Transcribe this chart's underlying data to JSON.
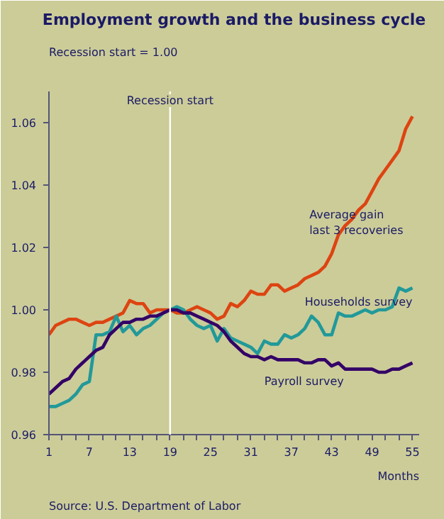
{
  "chart_data": {
    "type": "line",
    "title": "Employment growth and the business cycle",
    "subtitle": "Recession start = 1.00",
    "xlabel": "Months",
    "annotations": [
      "Source: U.S. Department of Labor"
    ],
    "x": [
      1,
      2,
      3,
      4,
      5,
      6,
      7,
      8,
      9,
      10,
      11,
      12,
      13,
      14,
      15,
      16,
      17,
      18,
      19,
      20,
      21,
      22,
      23,
      24,
      25,
      26,
      27,
      28,
      29,
      30,
      31,
      32,
      33,
      34,
      35,
      36,
      37,
      38,
      39,
      40,
      41,
      42,
      43,
      44,
      45,
      46,
      47,
      48,
      49,
      50,
      51,
      52,
      53,
      54,
      55
    ],
    "series": [
      {
        "name": "Average gain\nlast 3 recoveries",
        "color": "#dd4411",
        "values": [
          0.992,
          0.995,
          0.996,
          0.997,
          0.997,
          0.996,
          0.995,
          0.996,
          0.996,
          0.997,
          0.998,
          0.999,
          1.003,
          1.002,
          1.002,
          0.999,
          1.0,
          1.0,
          1.0,
          0.999,
          0.999,
          1.0,
          1.001,
          1.0,
          0.999,
          0.997,
          0.998,
          1.002,
          1.001,
          1.003,
          1.006,
          1.005,
          1.005,
          1.008,
          1.008,
          1.006,
          1.007,
          1.008,
          1.01,
          1.011,
          1.012,
          1.014,
          1.018,
          1.024,
          1.027,
          1.029,
          1.032,
          1.034,
          1.038,
          1.042,
          1.045,
          1.048,
          1.051,
          1.058,
          1.062
        ]
      },
      {
        "name": "Households survey",
        "color": "#229999",
        "values": [
          0.969,
          0.969,
          0.97,
          0.971,
          0.973,
          0.976,
          0.977,
          0.992,
          0.992,
          0.993,
          0.998,
          0.993,
          0.995,
          0.992,
          0.994,
          0.995,
          0.997,
          0.999,
          1.0,
          1.001,
          1.0,
          0.997,
          0.995,
          0.994,
          0.995,
          0.99,
          0.994,
          0.991,
          0.99,
          0.989,
          0.988,
          0.986,
          0.99,
          0.989,
          0.989,
          0.992,
          0.991,
          0.992,
          0.994,
          0.998,
          0.996,
          0.992,
          0.992,
          0.999,
          0.998,
          0.998,
          0.999,
          1.0,
          0.999,
          1.0,
          1.0,
          1.001,
          1.007,
          1.006,
          1.007
        ]
      },
      {
        "name": "Payroll survey",
        "color": "#330066",
        "values": [
          0.973,
          0.975,
          0.977,
          0.978,
          0.981,
          0.983,
          0.985,
          0.987,
          0.988,
          0.992,
          0.994,
          0.996,
          0.996,
          0.997,
          0.997,
          0.998,
          0.998,
          0.999,
          1.0,
          1.0,
          0.999,
          0.999,
          0.998,
          0.997,
          0.996,
          0.995,
          0.993,
          0.99,
          0.988,
          0.986,
          0.985,
          0.985,
          0.984,
          0.985,
          0.984,
          0.984,
          0.984,
          0.984,
          0.983,
          0.983,
          0.984,
          0.984,
          0.982,
          0.983,
          0.981,
          0.981,
          0.981,
          0.981,
          0.981,
          0.98,
          0.98,
          0.981,
          0.981,
          0.982,
          0.983
        ]
      }
    ],
    "xlim": [
      1,
      56
    ],
    "xticks": [
      {
        "value": 1,
        "label": "1"
      },
      {
        "value": 3,
        "label": null
      },
      {
        "value": 5,
        "label": null
      },
      {
        "value": 7,
        "label": "7"
      },
      {
        "value": 9,
        "label": null
      },
      {
        "value": 11,
        "label": null
      },
      {
        "value": 13,
        "label": "13"
      },
      {
        "value": 15,
        "label": null
      },
      {
        "value": 17,
        "label": null
      },
      {
        "value": 19,
        "label": "19"
      },
      {
        "value": 21,
        "label": null
      },
      {
        "value": 23,
        "label": null
      },
      {
        "value": 25,
        "label": "25"
      },
      {
        "value": 27,
        "label": null
      },
      {
        "value": 29,
        "label": null
      },
      {
        "value": 31,
        "label": "31"
      },
      {
        "value": 33,
        "label": null
      },
      {
        "value": 35,
        "label": null
      },
      {
        "value": 37,
        "label": "37"
      },
      {
        "value": 39,
        "label": null
      },
      {
        "value": 41,
        "label": null
      },
      {
        "value": 43,
        "label": "43"
      },
      {
        "value": 45,
        "label": null
      },
      {
        "value": 47,
        "label": null
      },
      {
        "value": 49,
        "label": "49"
      },
      {
        "value": 51,
        "label": null
      },
      {
        "value": 53,
        "label": null
      },
      {
        "value": 55,
        "label": "55"
      }
    ],
    "ylim": [
      0.96,
      1.07
    ],
    "yticks": [
      {
        "value": 0.96,
        "label": "0.96"
      },
      {
        "value": 0.98,
        "label": "0.98"
      },
      {
        "value": 1.0,
        "label": "1.00"
      },
      {
        "value": 1.02,
        "label": "1.02"
      },
      {
        "value": 1.04,
        "label": "1.04"
      },
      {
        "value": 1.06,
        "label": "1.06"
      }
    ],
    "ref_lines": [
      {
        "axis": "x",
        "value": 19,
        "label": "Recession start",
        "color": "#ffffff"
      }
    ],
    "grid": false,
    "legend": false,
    "line_style": "solid"
  }
}
